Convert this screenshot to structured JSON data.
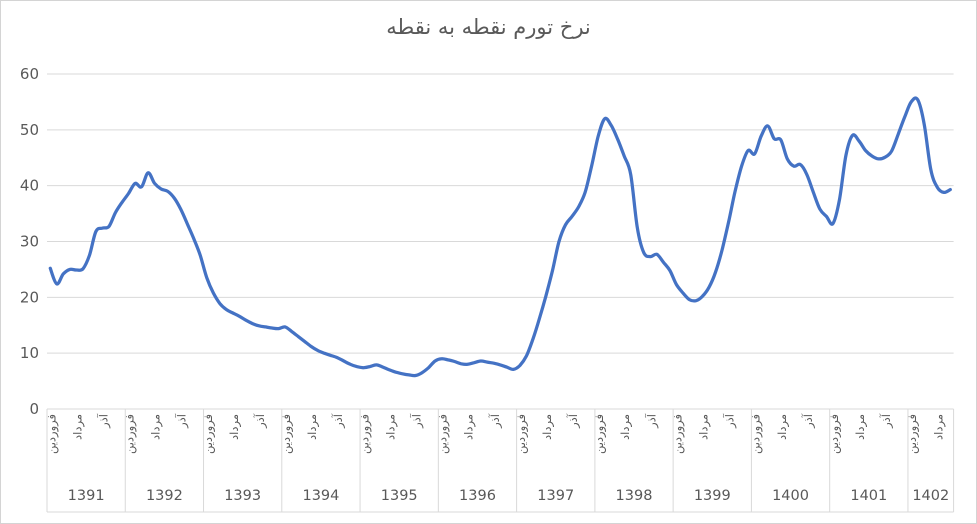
{
  "chart_data": {
    "type": "line",
    "title": "نرخ تورم نقطه به نقطه",
    "xlabel": "",
    "ylabel": "",
    "ylim": [
      0,
      60
    ],
    "yticks": [
      0,
      10,
      20,
      30,
      40,
      50,
      60
    ],
    "grid": true,
    "legend": false,
    "line_color": "#4472C4",
    "grid_color": "#D9D9D9",
    "text_color": "#595959",
    "x_axis": {
      "type": "year-month",
      "calendar": "jalali",
      "month_tick_labels": [
        "فروردین",
        "مرداد",
        "آذر"
      ],
      "month_tick_offsets": [
        1,
        5,
        9
      ],
      "years": [
        {
          "label": "1391",
          "months": 12
        },
        {
          "label": "1392",
          "months": 12
        },
        {
          "label": "1393",
          "months": 12
        },
        {
          "label": "1394",
          "months": 12
        },
        {
          "label": "1395",
          "months": 12
        },
        {
          "label": "1396",
          "months": 12
        },
        {
          "label": "1397",
          "months": 12
        },
        {
          "label": "1398",
          "months": 12
        },
        {
          "label": "1399",
          "months": 12
        },
        {
          "label": "1400",
          "months": 12
        },
        {
          "label": "1401",
          "months": 12
        },
        {
          "label": "1402",
          "months": 7
        }
      ]
    },
    "series": [
      {
        "name": "نرخ تورم نقطه به نقطه",
        "start": "فروردین 1391",
        "end": "مهر 1402",
        "values": [
          25.2,
          22.4,
          24.2,
          25.0,
          24.9,
          25.1,
          27.5,
          31.8,
          32.4,
          32.7,
          35.2,
          37.0,
          38.6,
          40.4,
          39.8,
          42.3,
          40.4,
          39.4,
          39.0,
          37.8,
          35.8,
          33.2,
          30.5,
          27.5,
          23.5,
          20.8,
          18.9,
          17.8,
          17.2,
          16.6,
          15.9,
          15.3,
          14.9,
          14.7,
          14.5,
          14.4,
          14.7,
          13.9,
          13.0,
          12.1,
          11.2,
          10.5,
          10.0,
          9.6,
          9.2,
          8.6,
          8.0,
          7.6,
          7.4,
          7.6,
          7.9,
          7.5,
          7.0,
          6.6,
          6.3,
          6.1,
          6.0,
          6.5,
          7.4,
          8.6,
          9.0,
          8.8,
          8.5,
          8.1,
          8.0,
          8.3,
          8.6,
          8.4,
          8.2,
          7.9,
          7.5,
          7.1,
          7.8,
          9.5,
          12.5,
          16.2,
          20.3,
          24.8,
          30.0,
          33.0,
          34.5,
          36.2,
          38.8,
          43.5,
          48.8,
          52.0,
          50.8,
          48.3,
          45.3,
          42.0,
          32.5,
          28.0,
          27.3,
          27.7,
          26.3,
          24.8,
          22.3,
          20.8,
          19.6,
          19.4,
          20.2,
          21.8,
          24.5,
          28.5,
          33.5,
          39.0,
          43.5,
          46.3,
          45.7,
          48.9,
          50.7,
          48.4,
          48.2,
          44.8,
          43.5,
          43.8,
          42.0,
          38.8,
          35.8,
          34.5,
          33.2,
          37.5,
          45.5,
          49.0,
          48.0,
          46.3,
          45.3,
          44.8,
          45.1,
          46.2,
          49.2,
          52.3,
          55.0,
          55.4,
          51.0,
          42.9,
          39.7,
          38.8,
          39.3
        ]
      }
    ]
  }
}
